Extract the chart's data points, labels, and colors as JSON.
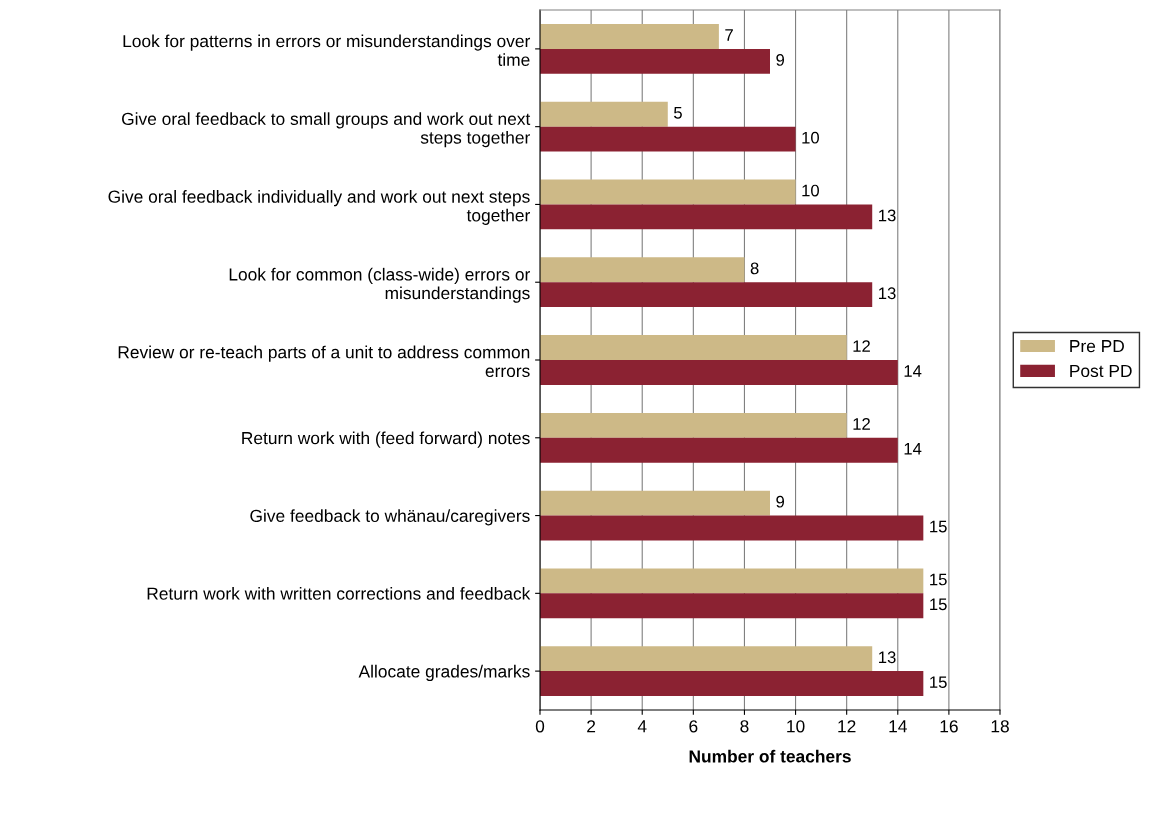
{
  "chart_data": {
    "type": "bar",
    "orientation": "horizontal",
    "categories": [
      "Look for patterns in errors or misunderstandings over\ntime",
      "Give oral feedback to small groups and work out next\nsteps together",
      "Give oral feedback individually and work out next steps\ntogether",
      "Look for common (class-wide) errors or\nmisunderstandings",
      "Review or re-teach parts of a unit to address common\nerrors",
      "Return work with (feed forward) notes",
      "Give feedback to whänau/caregivers",
      "Return work with written corrections and feedback",
      "Allocate grades/marks"
    ],
    "series": [
      {
        "name": "Pre PD",
        "color": "#cdb987",
        "values": [
          7,
          5,
          10,
          8,
          12,
          12,
          9,
          15,
          13
        ]
      },
      {
        "name": "Post PD",
        "color": "#8b2232",
        "values": [
          9,
          10,
          13,
          13,
          14,
          14,
          15,
          15,
          15
        ]
      }
    ],
    "xlabel": "Number of teachers",
    "xlim": [
      0,
      18
    ],
    "xticks": [
      0,
      2,
      4,
      6,
      8,
      10,
      12,
      14,
      16,
      18
    ],
    "grid": "x",
    "legend": "right",
    "data_labels": true
  }
}
